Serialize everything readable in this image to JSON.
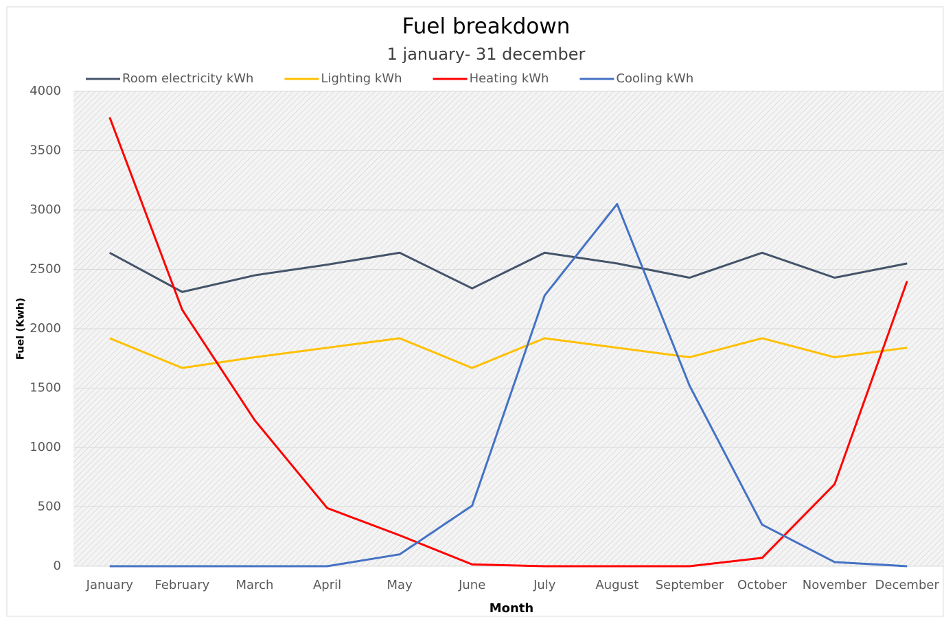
{
  "chart_data": {
    "type": "line",
    "title": "Fuel breakdown",
    "subtitle": "1 january- 31 december",
    "x_label": "Month",
    "y_label": "Fuel (Kwh)",
    "categories": [
      "January",
      "February",
      "March",
      "April",
      "May",
      "June",
      "July",
      "August",
      "September",
      "October",
      "November",
      "December"
    ],
    "series": [
      {
        "name": "Room electricity kWh",
        "color": "#44546a",
        "values": [
          2640,
          2310,
          2450,
          2540,
          2640,
          2340,
          2640,
          2550,
          2430,
          2640,
          2430,
          2550
        ]
      },
      {
        "name": "Lighting kWh",
        "color": "#ffc000",
        "values": [
          1920,
          1670,
          1760,
          1840,
          1920,
          1670,
          1920,
          1840,
          1760,
          1920,
          1760,
          1840
        ]
      },
      {
        "name": "Heating kWh",
        "color": "#ff0000",
        "values": [
          3780,
          2160,
          1230,
          490,
          260,
          15,
          0,
          0,
          0,
          70,
          690,
          2400
        ]
      },
      {
        "name": "Cooling kWh",
        "color": "#4472c4",
        "values": [
          0,
          0,
          0,
          0,
          100,
          510,
          2280,
          3050,
          1520,
          350,
          35,
          0
        ]
      }
    ],
    "ylim": [
      0,
      4000
    ],
    "yticks": [
      0,
      500,
      1000,
      1500,
      2000,
      2500,
      3000,
      3500,
      4000
    ],
    "grid": true,
    "legend": "top"
  }
}
